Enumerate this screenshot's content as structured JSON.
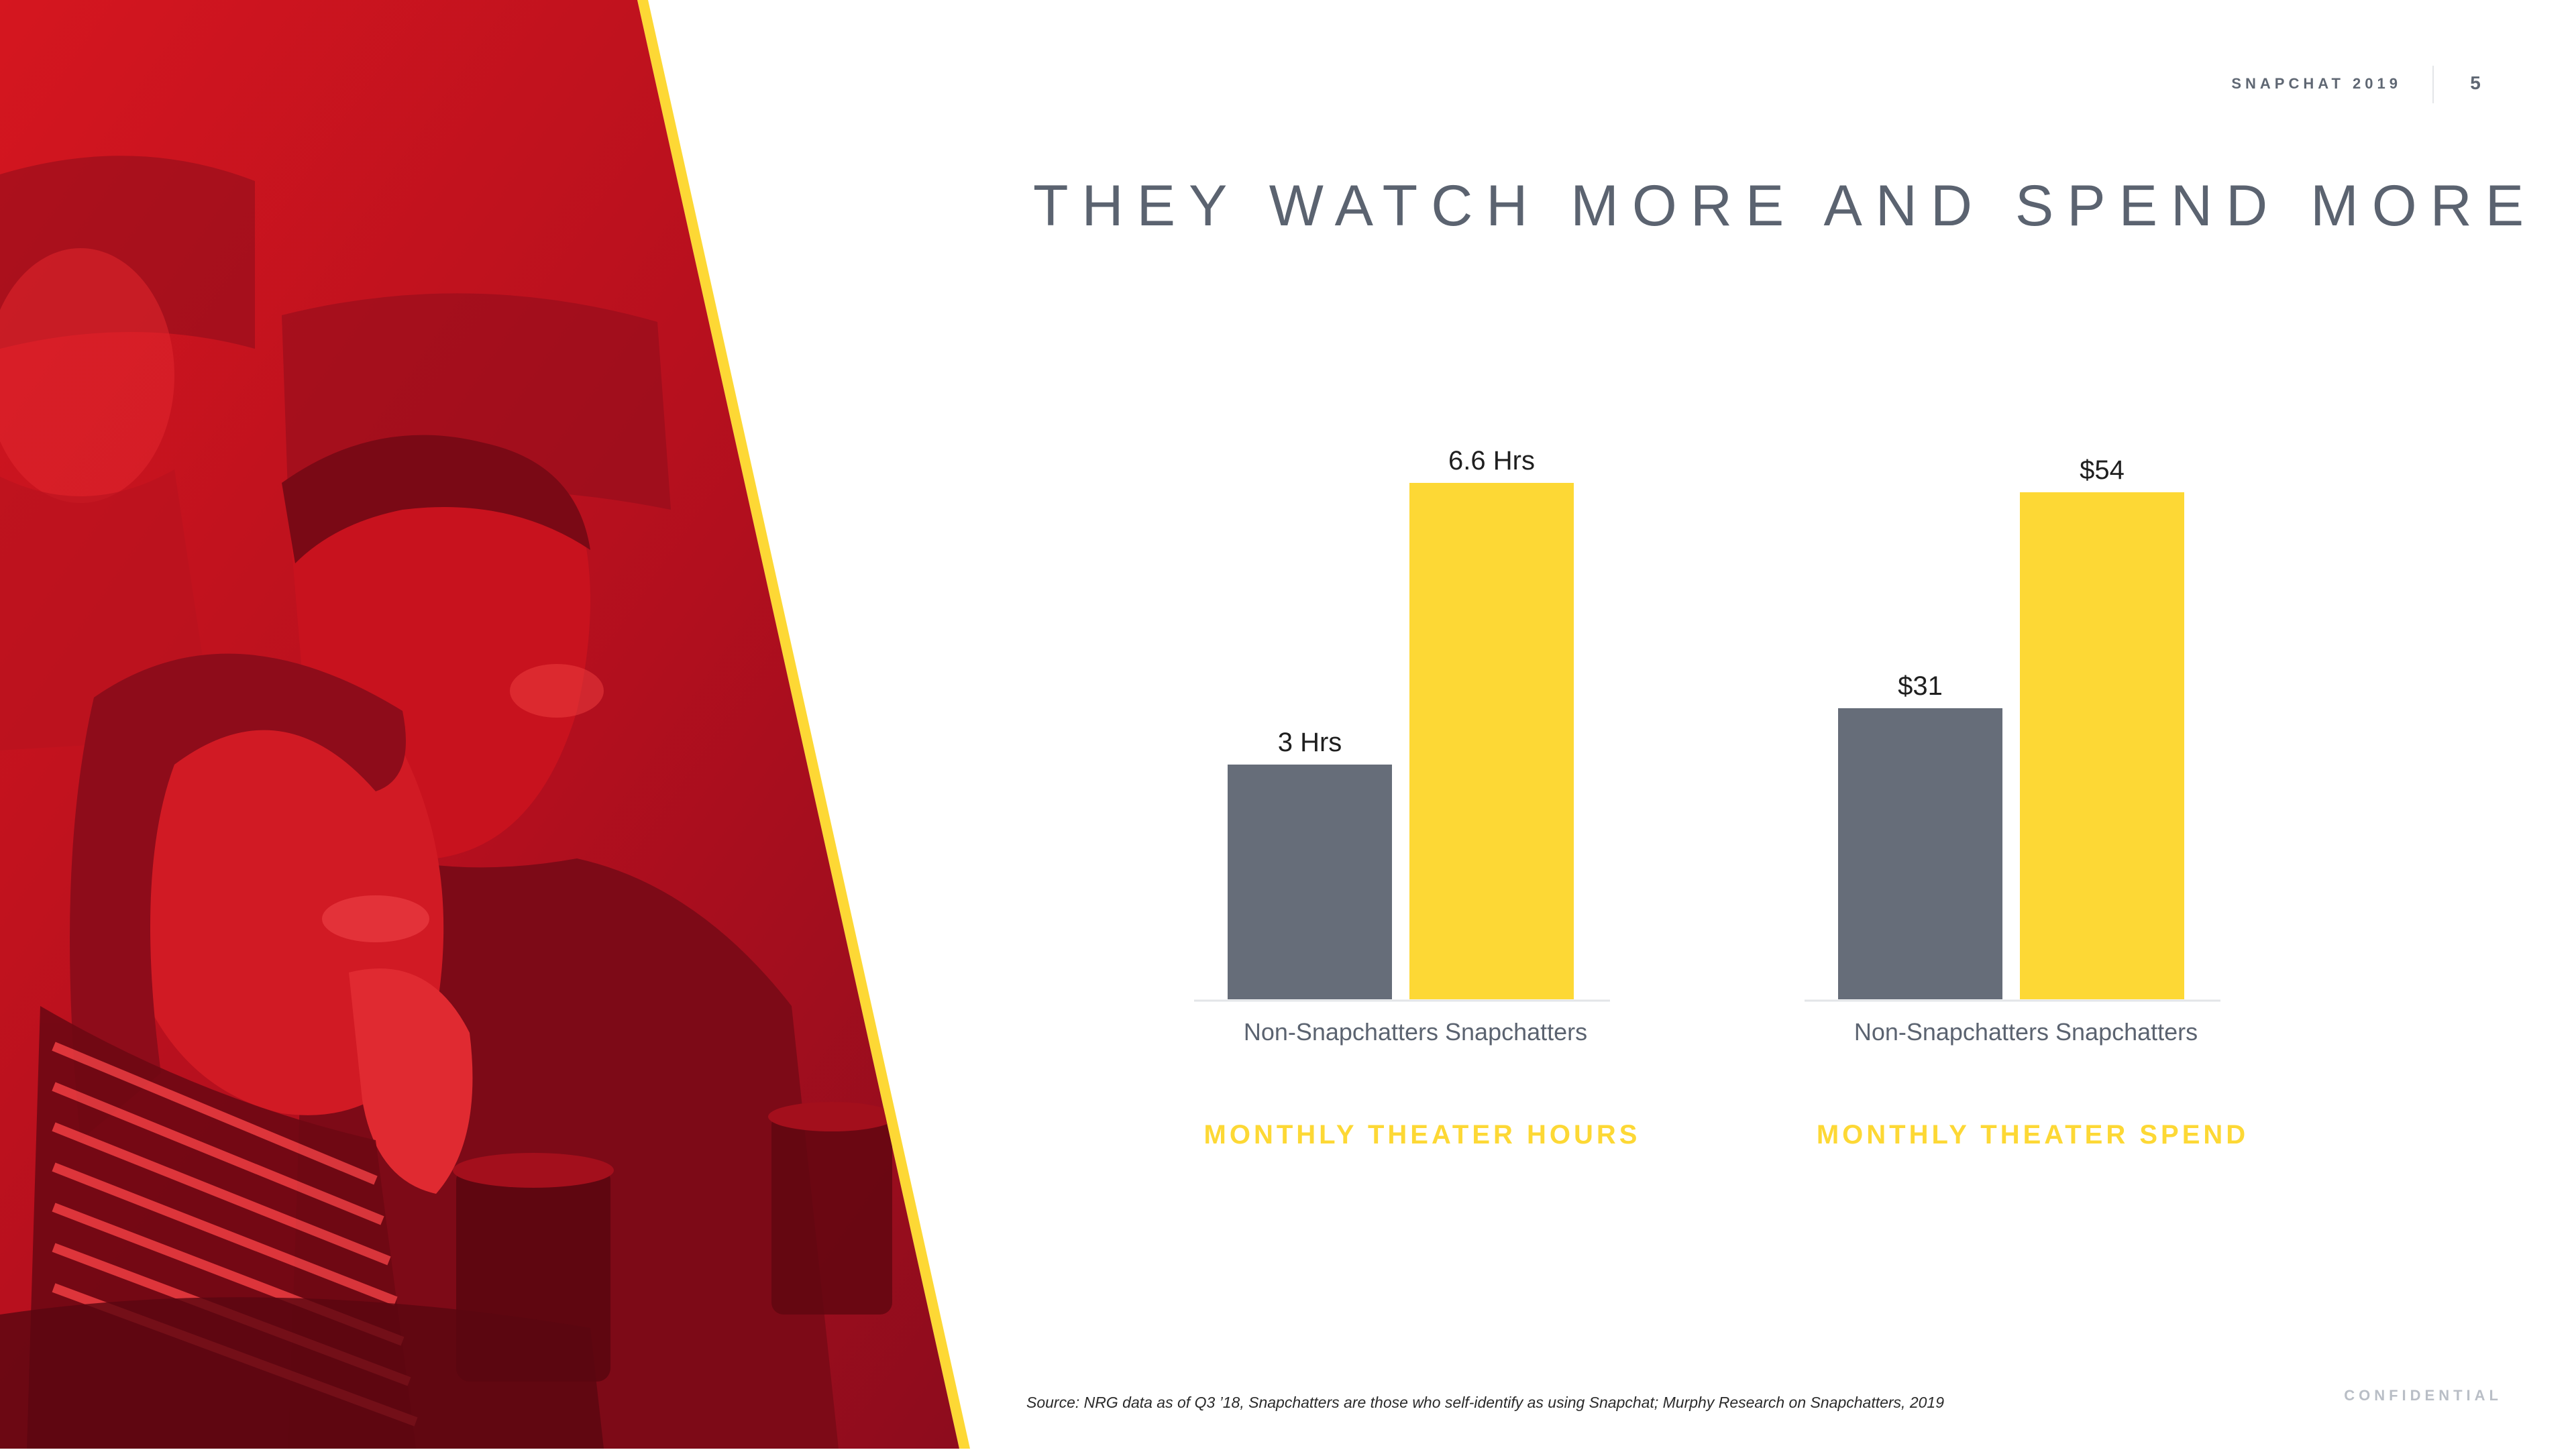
{
  "header": {
    "brand": "SNAPCHAT 2019",
    "page_number": "5"
  },
  "title": "THEY WATCH MORE AND SPEND MORE",
  "colors": {
    "non_snapchatters": "#666d79",
    "snapchatters": "#fdd835",
    "photo_tint": "#c8141f",
    "accent_stripe": "#fdd835"
  },
  "chart_data": [
    {
      "type": "bar",
      "title": "MONTHLY THEATER HOURS",
      "categories": [
        "Non-Snapchatters",
        "Snapchatters"
      ],
      "values": [
        3,
        6.6
      ],
      "data_labels": [
        "3 Hrs",
        "6.6 Hrs"
      ],
      "ylim": [
        0,
        7.2
      ],
      "grid": false
    },
    {
      "type": "bar",
      "title": "MONTHLY THEATER SPEND",
      "categories": [
        "Non-Snapchatters",
        "Snapchatters"
      ],
      "values": [
        31,
        54
      ],
      "data_labels": [
        "$31",
        "$54"
      ],
      "ylim": [
        0,
        60
      ],
      "grid": false
    }
  ],
  "source": "Source: NRG data as of Q3 ’18, Snapchatters are those who self-identify as using Snapchat; Murphy Research on Snapchatters, 2019",
  "footer": {
    "confidential": "CONFIDENTIAL"
  }
}
